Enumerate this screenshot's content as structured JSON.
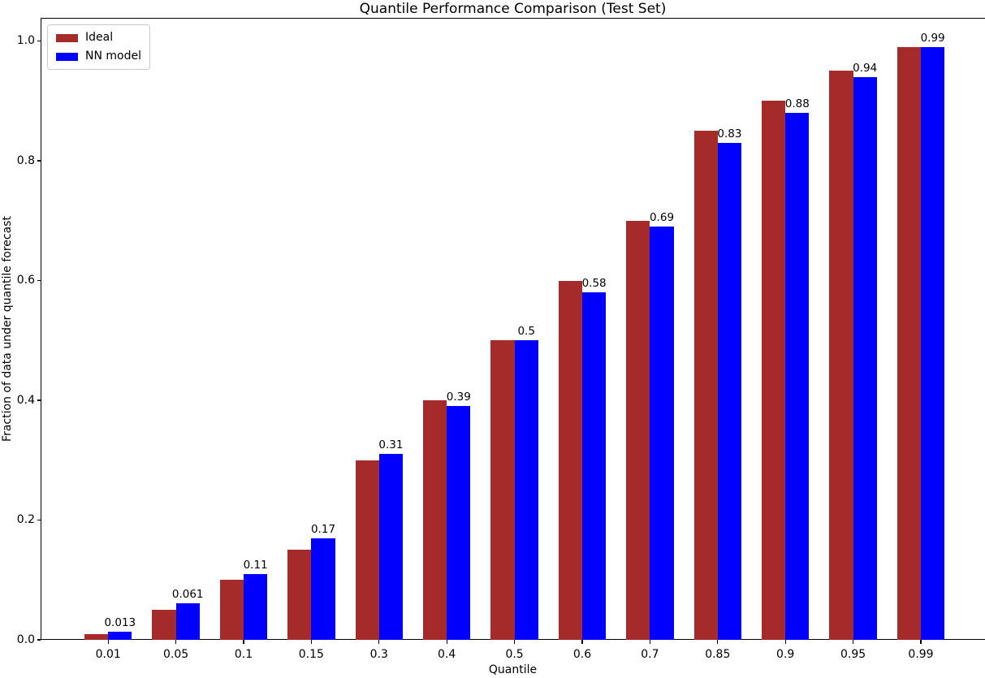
{
  "chart_data": {
    "type": "bar",
    "title": "Quantile Performance Comparison (Test Set)",
    "xlabel": "Quantile",
    "ylabel": "Fraction of data under quantile forecast",
    "categories": [
      "0.01",
      "0.05",
      "0.1",
      "0.15",
      "0.3",
      "0.4",
      "0.5",
      "0.6",
      "0.7",
      "0.85",
      "0.9",
      "0.95",
      "0.99"
    ],
    "series": [
      {
        "name": "Ideal",
        "color": "#a52a2a",
        "values": [
          0.01,
          0.05,
          0.1,
          0.15,
          0.3,
          0.4,
          0.5,
          0.6,
          0.7,
          0.85,
          0.9,
          0.95,
          0.99
        ]
      },
      {
        "name": "NN model",
        "color": "#0000ff",
        "values": [
          0.013,
          0.061,
          0.11,
          0.17,
          0.31,
          0.39,
          0.5,
          0.58,
          0.69,
          0.83,
          0.88,
          0.94,
          0.99
        ],
        "bar_labels": [
          "0.013",
          "0.061",
          "0.11",
          "0.17",
          "0.31",
          "0.39",
          "0.5",
          "0.58",
          "0.69",
          "0.83",
          "0.88",
          "0.94",
          "0.99"
        ]
      }
    ],
    "yticks": [
      "0.0",
      "0.2",
      "0.4",
      "0.6",
      "0.8",
      "1.0"
    ],
    "ylim": [
      0.0,
      1.04
    ],
    "grid": false,
    "legend_position": "upper left",
    "axis_color": "#000000",
    "background_color": "#ffffff"
  }
}
